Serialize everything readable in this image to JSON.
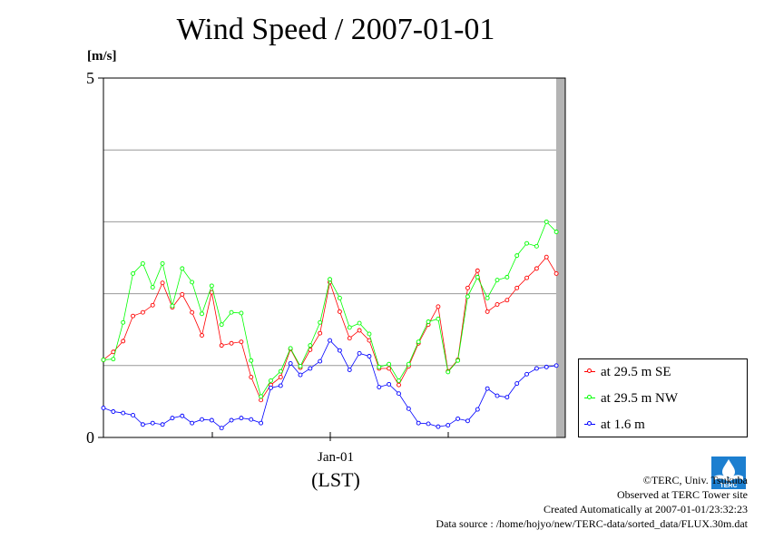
{
  "page": {
    "title": "Wind Speed / 2007-01-01",
    "unit_label": "[m/s]",
    "x_tick_label": "Jan-01",
    "x_axis_label": "(LST)",
    "footer": {
      "copyright": "©TERC, Univ. Tsukuba",
      "site": "Observed at TERC Tower site",
      "created": "Created Automatically at 2007-01-01/23:32:23",
      "source": "Data source : /home/hojyo/new/TERC-data/sorted_data/FLUX.30m.dat"
    },
    "logo_text": "TERC"
  },
  "chart_data": {
    "type": "line",
    "title": "Wind Speed / 2007-01-01",
    "ylabel": "[m/s]",
    "xlabel": "(LST)",
    "ylim": [
      0,
      5
    ],
    "y_ticks": [
      0,
      5
    ],
    "y_gridlines": [
      1,
      2,
      3,
      4
    ],
    "x_ticks": [
      "Jan-01"
    ],
    "x_interval_hours": 0.5,
    "grid": true,
    "legend_position": "right-bottom",
    "missing_data_shading": "gray band at right end (last interval)",
    "series": [
      {
        "name": "at 29.5 m SE",
        "color": "#ff0000",
        "values": [
          1.08,
          1.19,
          1.34,
          1.69,
          1.74,
          1.84,
          2.15,
          1.81,
          1.99,
          1.74,
          1.42,
          2.02,
          1.28,
          1.31,
          1.33,
          0.84,
          0.52,
          0.73,
          0.84,
          1.23,
          0.97,
          1.22,
          1.45,
          2.16,
          1.75,
          1.38,
          1.49,
          1.35,
          0.96,
          0.96,
          0.73,
          0.99,
          1.31,
          1.57,
          1.82,
          0.92,
          1.08,
          2.08,
          2.32,
          1.75,
          1.85,
          1.91,
          2.08,
          2.22,
          2.35,
          2.51,
          2.28
        ]
      },
      {
        "name": "at 29.5 m NW",
        "color": "#00ff00",
        "values": [
          1.08,
          1.09,
          1.6,
          2.28,
          2.42,
          2.09,
          2.42,
          1.83,
          2.35,
          2.16,
          1.72,
          2.11,
          1.57,
          1.74,
          1.73,
          1.07,
          0.57,
          0.79,
          0.92,
          1.24,
          0.99,
          1.28,
          1.6,
          2.2,
          1.94,
          1.53,
          1.59,
          1.44,
          0.98,
          1.02,
          0.79,
          1.02,
          1.33,
          1.61,
          1.65,
          0.91,
          1.07,
          1.96,
          2.23,
          1.94,
          2.19,
          2.23,
          2.53,
          2.7,
          2.66,
          3.0,
          2.86
        ]
      },
      {
        "name": "at 1.6 m",
        "color": "#0000ff",
        "values": [
          0.41,
          0.36,
          0.34,
          0.31,
          0.18,
          0.2,
          0.18,
          0.27,
          0.3,
          0.2,
          0.25,
          0.24,
          0.13,
          0.24,
          0.27,
          0.25,
          0.2,
          0.69,
          0.72,
          1.03,
          0.87,
          0.96,
          1.06,
          1.35,
          1.21,
          0.94,
          1.17,
          1.13,
          0.7,
          0.74,
          0.61,
          0.4,
          0.2,
          0.19,
          0.15,
          0.17,
          0.26,
          0.23,
          0.39,
          0.68,
          0.58,
          0.56,
          0.75,
          0.88,
          0.96,
          0.98,
          1.0
        ]
      }
    ]
  }
}
